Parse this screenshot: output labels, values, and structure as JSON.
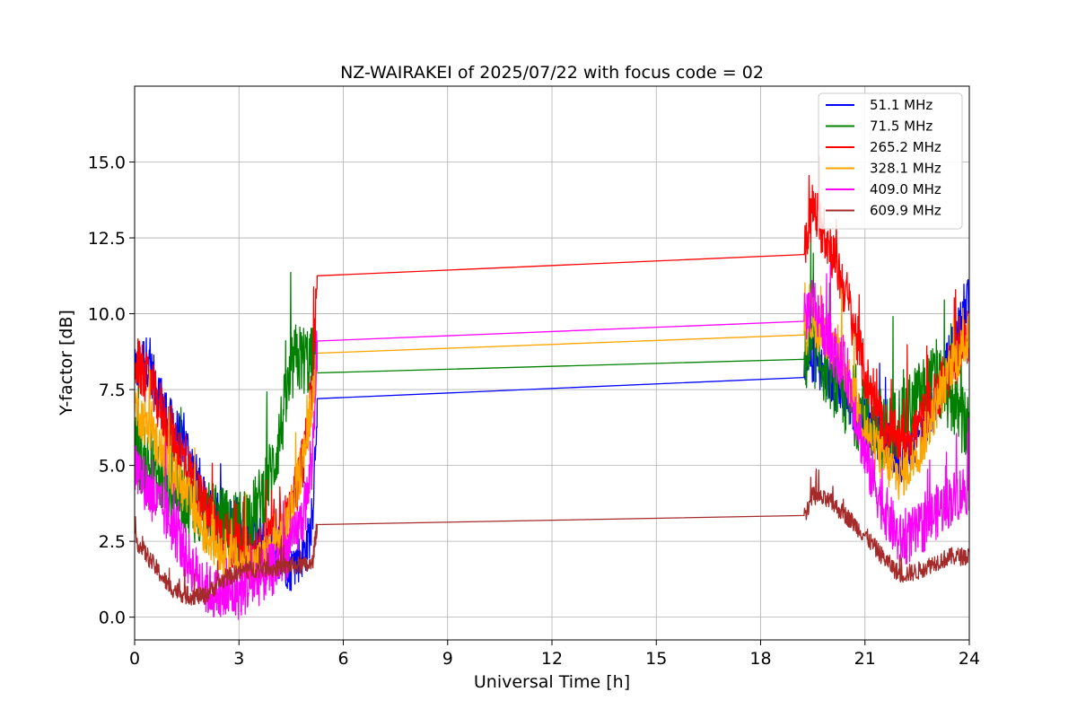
{
  "chart_data": {
    "type": "line",
    "title": "NZ-WAIRAKEI of 2025/07/22 with focus code = 02",
    "xlabel": "Universal Time [h]",
    "ylabel": "Y-factor [dB]",
    "xlim": [
      0,
      24
    ],
    "ylim": [
      -0.75,
      17.5
    ],
    "xticks": [
      0,
      3,
      6,
      9,
      12,
      15,
      18,
      21,
      24
    ],
    "yticks": [
      0.0,
      2.5,
      5.0,
      7.5,
      10.0,
      12.5,
      15.0
    ],
    "xtick_labels": [
      "0",
      "3",
      "6",
      "9",
      "12",
      "15",
      "18",
      "21",
      "24"
    ],
    "ytick_labels": [
      "0.0",
      "2.5",
      "5.0",
      "7.5",
      "10.0",
      "12.5",
      "15.0"
    ],
    "grid": true,
    "legend_position": "top-right",
    "series": [
      {
        "name": " 51.1 MHz",
        "color": "#0000ff",
        "x": [
          0,
          0.3,
          0.5,
          1.0,
          1.5,
          2.0,
          2.5,
          3.0,
          3.5,
          4.0,
          4.5,
          4.9,
          5.1,
          5.25,
          19.25,
          19.5,
          20.0,
          20.5,
          21.0,
          21.5,
          22.0,
          22.5,
          23.0,
          23.5,
          24.0
        ],
        "y": [
          8.0,
          8.6,
          8.0,
          6.5,
          5.6,
          3.8,
          3.3,
          3.0,
          2.6,
          2.2,
          1.6,
          2.2,
          3.0,
          7.2,
          7.9,
          8.5,
          7.8,
          7.0,
          6.5,
          5.8,
          5.2,
          5.8,
          7.0,
          8.8,
          10.5
        ],
        "noise": 0.8
      },
      {
        "name": " 71.5 MHz",
        "color": "#008000",
        "x": [
          0,
          0.5,
          1.0,
          1.5,
          2.0,
          2.5,
          3.0,
          3.5,
          4.0,
          4.3,
          4.6,
          4.9,
          5.1,
          5.25,
          19.25,
          19.5,
          20.0,
          20.5,
          21.0,
          21.5,
          22.0,
          22.5,
          23.0,
          23.5,
          24.0
        ],
        "y": [
          5.5,
          4.8,
          4.3,
          3.9,
          3.3,
          3.1,
          3.0,
          3.5,
          5.0,
          6.8,
          8.5,
          8.5,
          8.4,
          8.05,
          8.5,
          8.8,
          8.0,
          7.0,
          6.5,
          6.0,
          6.5,
          7.2,
          7.8,
          7.2,
          6.0
        ],
        "noise": 1.2
      },
      {
        "name": "265.2 MHz",
        "color": "#ff0000",
        "x": [
          0,
          0.5,
          1.0,
          1.5,
          2.0,
          2.5,
          3.0,
          3.5,
          4.0,
          4.5,
          4.9,
          5.1,
          5.25,
          19.25,
          19.5,
          20.0,
          20.5,
          21.0,
          21.5,
          22.0,
          22.5,
          23.0,
          23.5,
          24.0
        ],
        "y": [
          8.5,
          7.5,
          6.2,
          5.0,
          3.5,
          2.8,
          2.2,
          2.0,
          2.6,
          3.5,
          5.5,
          7.5,
          11.25,
          11.95,
          13.5,
          12.2,
          10.5,
          8.0,
          6.3,
          5.8,
          6.2,
          7.2,
          8.3,
          9.3
        ],
        "noise": 0.9
      },
      {
        "name": "328.1 MHz",
        "color": "#ffa500",
        "x": [
          0,
          0.5,
          1.0,
          1.5,
          2.0,
          2.5,
          3.0,
          3.5,
          4.0,
          4.5,
          4.9,
          5.1,
          5.25,
          19.25,
          19.5,
          20.0,
          20.5,
          21.0,
          21.5,
          22.0,
          22.5,
          23.0,
          23.5,
          24.0
        ],
        "y": [
          7.0,
          6.0,
          5.0,
          4.0,
          2.8,
          2.2,
          1.8,
          1.7,
          2.2,
          3.5,
          5.5,
          7.0,
          8.7,
          9.3,
          9.8,
          9.0,
          8.0,
          6.2,
          5.2,
          4.6,
          5.3,
          6.8,
          8.3,
          9.2
        ],
        "noise": 0.8
      },
      {
        "name": "409.0 MHz",
        "color": "#ff00ff",
        "x": [
          0,
          0.5,
          1.0,
          1.5,
          2.0,
          2.5,
          3.0,
          3.5,
          4.0,
          4.5,
          4.9,
          5.1,
          5.25,
          19.25,
          19.5,
          20.0,
          20.5,
          21.0,
          21.5,
          22.0,
          22.5,
          23.0,
          23.5,
          24.0
        ],
        "y": [
          5.0,
          4.0,
          3.2,
          2.0,
          1.0,
          0.6,
          0.8,
          1.2,
          1.6,
          2.3,
          3.5,
          5.0,
          9.1,
          9.75,
          10.5,
          9.0,
          8.0,
          5.3,
          3.7,
          2.5,
          2.8,
          3.4,
          3.9,
          4.3
        ],
        "noise": 0.9
      },
      {
        "name": "609.9 MHz",
        "color": "#a52a2a",
        "x": [
          0,
          0.5,
          1.0,
          1.5,
          2.0,
          2.5,
          3.0,
          3.5,
          4.0,
          4.5,
          4.9,
          5.1,
          5.25,
          19.25,
          19.5,
          20.0,
          20.5,
          21.0,
          21.5,
          22.0,
          22.5,
          23.0,
          23.5,
          24.0
        ],
        "y": [
          2.6,
          1.8,
          1.0,
          0.7,
          0.7,
          1.2,
          1.5,
          1.6,
          1.6,
          1.7,
          1.7,
          1.7,
          3.05,
          3.35,
          4.0,
          3.8,
          3.3,
          2.7,
          2.0,
          1.4,
          1.5,
          1.8,
          2.0,
          2.0
        ],
        "noise": 0.3
      }
    ]
  }
}
